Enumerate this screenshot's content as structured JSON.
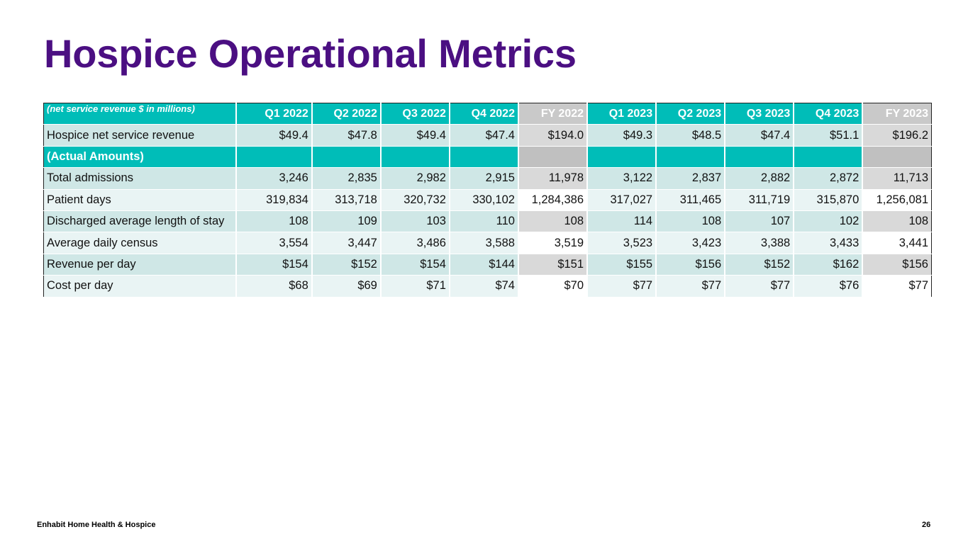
{
  "title": "Hospice Operational Metrics",
  "table": {
    "label_header": "(net service revenue $ in millions)",
    "columns": [
      "Q1 2022",
      "Q2 2022",
      "Q3 2022",
      "Q4 2022",
      "FY 2022",
      "Q1 2023",
      "Q2 2023",
      "Q3 2023",
      "Q4 2023",
      "FY 2023"
    ],
    "revenue_row": {
      "label": "Hospice net service revenue",
      "values": [
        "$49.4",
        "$47.8",
        "$49.4",
        "$47.4",
        "$194.0",
        "$49.3",
        "$48.5",
        "$47.4",
        "$51.1",
        "$196.2"
      ]
    },
    "section_label": "(Actual Amounts)",
    "rows": [
      {
        "label": "Total admissions",
        "values": [
          "3,246",
          "2,835",
          "2,982",
          "2,915",
          "11,978",
          "3,122",
          "2,837",
          "2,882",
          "2,872",
          "11,713"
        ]
      },
      {
        "label": "Patient days",
        "values": [
          "319,834",
          "313,718",
          "320,732",
          "330,102",
          "1,284,386",
          "317,027",
          "311,465",
          "311,719",
          "315,870",
          "1,256,081"
        ]
      },
      {
        "label": "Discharged average length of stay",
        "values": [
          "108",
          "109",
          "103",
          "110",
          "108",
          "114",
          "108",
          "107",
          "102",
          "108"
        ]
      },
      {
        "label": "Average daily census",
        "values": [
          "3,554",
          "3,447",
          "3,486",
          "3,588",
          "3,519",
          "3,523",
          "3,423",
          "3,388",
          "3,433",
          "3,441"
        ]
      },
      {
        "label": "Revenue per day",
        "values": [
          "$154",
          "$152",
          "$154",
          "$144",
          "$151",
          "$155",
          "$156",
          "$152",
          "$162",
          "$156"
        ]
      },
      {
        "label": "Cost per day",
        "values": [
          "$68",
          "$69",
          "$71",
          "$74",
          "$70",
          "$77",
          "$77",
          "$77",
          "$76",
          "$77"
        ]
      }
    ]
  },
  "footer": {
    "company": "Enhabit Home Health & Hospice",
    "page_number": "26"
  }
}
